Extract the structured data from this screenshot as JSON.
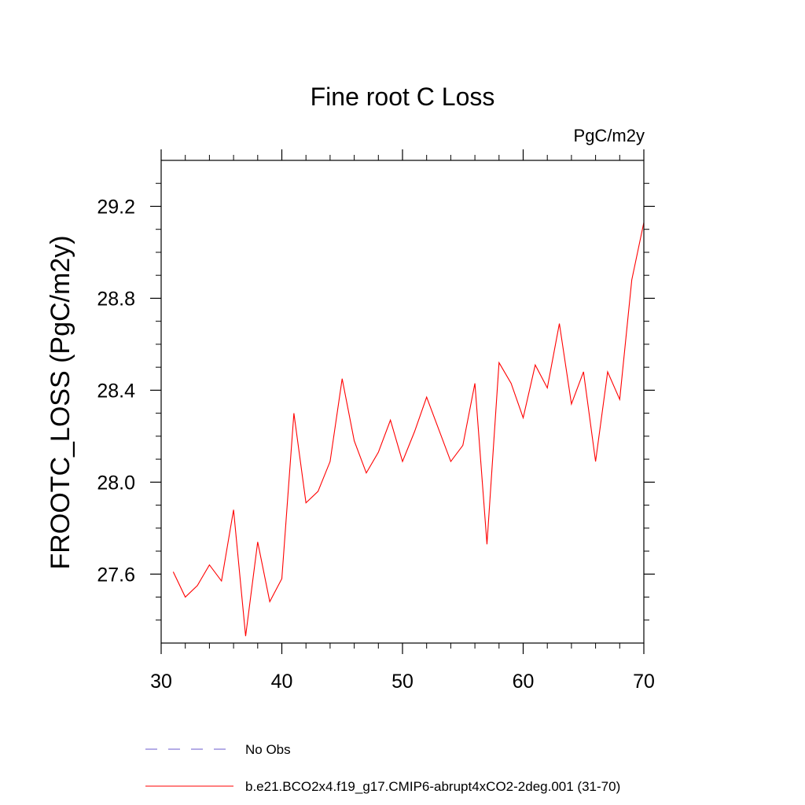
{
  "chart_data": {
    "type": "line",
    "title": "Fine root C Loss",
    "units": "PgC/m2y",
    "ylabel": "FROOTC_LOSS  (PgC/m2y)",
    "xlabel": "",
    "xlim": [
      30,
      70
    ],
    "ylim": [
      27.3,
      29.4
    ],
    "xticks": [
      30,
      40,
      50,
      60,
      70
    ],
    "xtick_labels": [
      "30",
      "40",
      "50",
      "60",
      "70"
    ],
    "yticks": [
      27.6,
      28.0,
      28.4,
      28.8,
      29.2
    ],
    "ytick_labels": [
      "27.6",
      "28.0",
      "28.4",
      "28.8",
      "29.2"
    ],
    "grid": false,
    "legend_position": "bottom",
    "series": [
      {
        "name": "No Obs",
        "color": "#6a5acd",
        "style": "dashed",
        "x": [],
        "values": []
      },
      {
        "name": "b.e21.BCO2x4.f19_g17.CMIP6-abrupt4xCO2-2deg.001 (31-70)",
        "color": "#ff0000",
        "style": "solid",
        "x": [
          31,
          32,
          33,
          34,
          35,
          36,
          37,
          38,
          39,
          40,
          41,
          42,
          43,
          44,
          45,
          46,
          47,
          48,
          49,
          50,
          51,
          52,
          53,
          54,
          55,
          56,
          57,
          58,
          59,
          60,
          61,
          62,
          63,
          64,
          65,
          66,
          67,
          68,
          69,
          70
        ],
        "values": [
          27.61,
          27.5,
          27.55,
          27.64,
          27.57,
          27.88,
          27.33,
          27.74,
          27.48,
          27.58,
          28.3,
          27.91,
          27.96,
          28.09,
          28.45,
          28.18,
          28.04,
          28.13,
          28.27,
          28.09,
          28.22,
          28.37,
          28.23,
          28.09,
          28.16,
          28.43,
          27.73,
          28.52,
          28.43,
          28.28,
          28.51,
          28.41,
          28.69,
          28.34,
          28.48,
          28.09,
          28.48,
          28.36,
          28.88,
          29.13
        ]
      }
    ]
  }
}
